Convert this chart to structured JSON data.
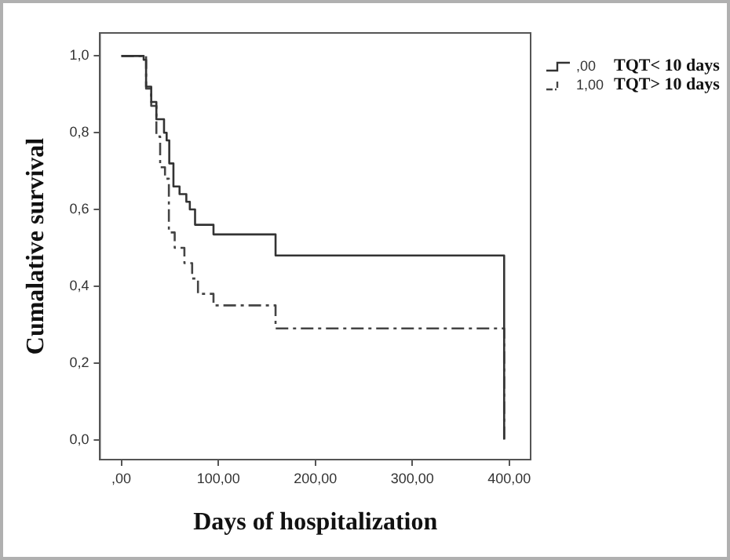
{
  "chart_data": {
    "type": "step",
    "xlabel": "Days of hospitalization",
    "ylabel": "Cumalative survival",
    "xlim": [
      -22,
      422
    ],
    "ylim": [
      -0.052,
      1.06
    ],
    "xticks": [
      {
        "value": 0,
        "label": ",00"
      },
      {
        "value": 100,
        "label": "100,00"
      },
      {
        "value": 200,
        "label": "200,00"
      },
      {
        "value": 300,
        "label": "300,00"
      },
      {
        "value": 400,
        "label": "400,00"
      }
    ],
    "yticks": [
      {
        "value": 0,
        "label": "0,0"
      },
      {
        "value": 0.2,
        "label": "0,2"
      },
      {
        "value": 0.4,
        "label": "0,4"
      },
      {
        "value": 0.6,
        "label": "0,6"
      },
      {
        "value": 0.8,
        "label": "0,8"
      },
      {
        "value": 1,
        "label": "1,0"
      }
    ],
    "grid": false,
    "legend": "top right",
    "marker": "none",
    "annotations": [
      "TQT< 10 days",
      "TQT> 10 days"
    ],
    "series": [
      {
        "name": ",00",
        "color": "#333333",
        "line_style": "solid",
        "x": [
          0,
          17.5,
          23,
          25.5,
          30.8,
          36.1,
          44,
          46.7,
          49.4,
          53.7,
          60,
          67,
          70.6,
          76,
          95,
          159,
          394.7
        ],
        "values": [
          1,
          1,
          0.99,
          0.92,
          0.88,
          0.835,
          0.8,
          0.78,
          0.72,
          0.66,
          0.64,
          0.62,
          0.6,
          0.56,
          0.535,
          0.48,
          0
        ]
      },
      {
        "name": "1,00",
        "color": "#444444",
        "line_style": "dashed",
        "x": [
          0,
          22,
          25.5,
          30.8,
          36.1,
          40,
          45,
          49,
          55,
          65,
          73,
          79,
          95,
          159,
          394.7
        ],
        "values": [
          1,
          1,
          0.915,
          0.87,
          0.79,
          0.71,
          0.68,
          0.54,
          0.5,
          0.46,
          0.42,
          0.38,
          0.35,
          0.29,
          0
        ]
      }
    ]
  }
}
